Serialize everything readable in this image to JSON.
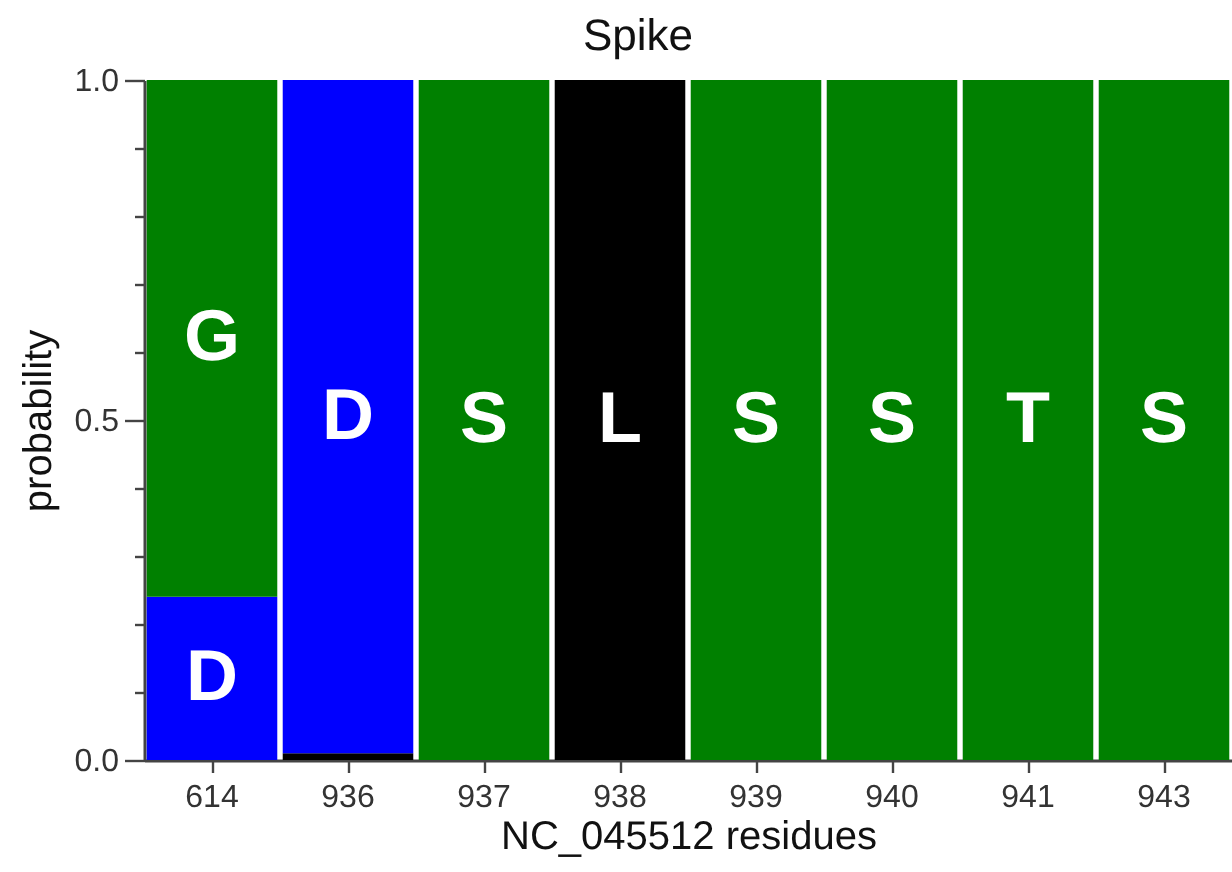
{
  "chart_data": {
    "type": "bar",
    "title": "Spike",
    "xlabel": "NC_045512 residues",
    "ylabel": "probability",
    "categories": [
      "614",
      "936",
      "937",
      "938",
      "939",
      "940",
      "941",
      "943"
    ],
    "stacked": true,
    "series": [
      {
        "color": "#000000",
        "values": [
          null,
          0.01,
          null,
          null,
          null,
          null,
          null,
          null
        ]
      },
      {
        "name": "D",
        "color": "#0000ff",
        "values": [
          0.24,
          0.99,
          null,
          null,
          null,
          null,
          null,
          null
        ]
      },
      {
        "name": "G",
        "color": "#008000",
        "values": [
          0.76,
          null,
          null,
          null,
          null,
          null,
          null,
          null
        ]
      },
      {
        "name": "S",
        "color": "#008000",
        "values": [
          null,
          null,
          1.0,
          null,
          1.0,
          1.0,
          null,
          1.0
        ]
      },
      {
        "name": "L",
        "color": "#000000",
        "values": [
          null,
          null,
          null,
          1.0,
          null,
          null,
          null,
          null
        ]
      },
      {
        "name": "T",
        "color": "#008000",
        "values": [
          null,
          null,
          null,
          null,
          null,
          null,
          1.0,
          null
        ]
      }
    ],
    "ylim": [
      0,
      1
    ],
    "yticks": [
      {
        "value": 0,
        "label": "0.0"
      },
      {
        "value": 0.1,
        "label": null
      },
      {
        "value": 0.2,
        "label": null
      },
      {
        "value": 0.3,
        "label": null
      },
      {
        "value": 0.4,
        "label": null
      },
      0.5,
      {
        "value": 0.6,
        "label": null
      },
      {
        "value": 0.7,
        "label": null
      },
      {
        "value": 0.8,
        "label": null
      },
      {
        "value": 0.9,
        "label": null
      },
      {
        "value": 1,
        "label": "1.0"
      }
    ]
  }
}
